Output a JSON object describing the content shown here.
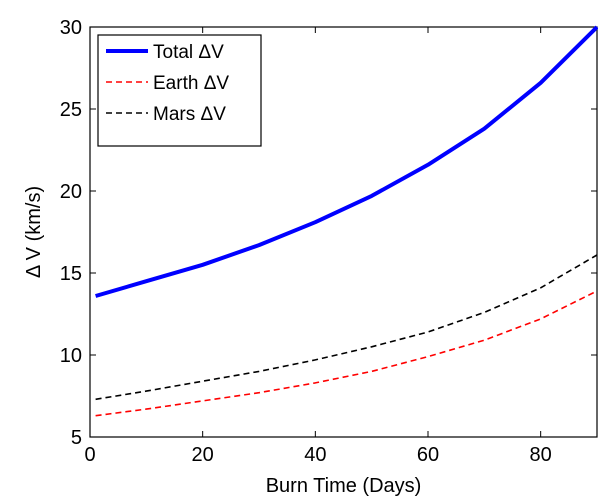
{
  "chart_data": {
    "type": "line",
    "xlabel": "Burn Time (Days)",
    "ylabel": "Δ V (km/s)",
    "xlim": [
      0,
      90
    ],
    "ylim": [
      5,
      30
    ],
    "xticks": [
      0,
      20,
      40,
      60,
      80
    ],
    "yticks": [
      5,
      10,
      15,
      20,
      25,
      30
    ],
    "grid": false,
    "legend_position": "top-left",
    "series": [
      {
        "name": "Total ΔV",
        "color": "#0000ff",
        "style": "solid",
        "x": [
          1,
          10,
          20,
          30,
          40,
          50,
          60,
          70,
          80,
          90
        ],
        "y": [
          13.6,
          14.5,
          15.5,
          16.7,
          18.1,
          19.7,
          21.6,
          23.8,
          26.6,
          30.0
        ]
      },
      {
        "name": "Earth ΔV",
        "color": "#ff0000",
        "style": "dashed",
        "x": [
          1,
          10,
          20,
          30,
          40,
          50,
          60,
          70,
          80,
          90
        ],
        "y": [
          6.3,
          6.7,
          7.2,
          7.7,
          8.3,
          9.0,
          9.9,
          10.9,
          12.2,
          13.9
        ]
      },
      {
        "name": "Mars ΔV",
        "color": "#000000",
        "style": "dashed",
        "x": [
          1,
          10,
          20,
          30,
          40,
          50,
          60,
          70,
          80,
          90
        ],
        "y": [
          7.3,
          7.8,
          8.4,
          9.0,
          9.7,
          10.5,
          11.4,
          12.6,
          14.1,
          16.1
        ]
      }
    ]
  }
}
